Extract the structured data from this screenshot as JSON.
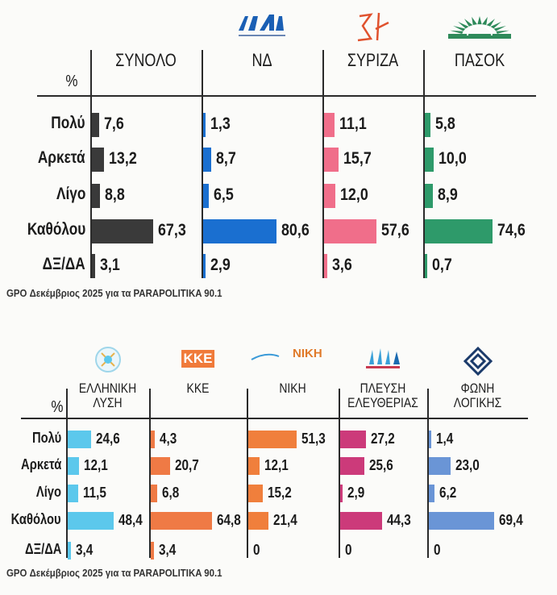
{
  "chart_data": [
    {
      "type": "table",
      "unit_label": "%",
      "rows": [
        "Πολύ",
        "Αρκετά",
        "Λίγο",
        "Καθόλου",
        "ΔΞ/ΔΑ"
      ],
      "series": [
        {
          "name": "ΣΥΝΟΛΟ",
          "color": "#3a3a3a",
          "logo": "",
          "values": [
            7.6,
            13.2,
            8.8,
            67.3,
            3.1
          ],
          "labels": [
            "7,6",
            "13,2",
            "8,8",
            "67,3",
            "3,1"
          ]
        },
        {
          "name": "ΝΔ",
          "color": "#1a6fd0",
          "logo": "nd-logo",
          "values": [
            1.3,
            8.7,
            6.5,
            80.6,
            2.9
          ],
          "labels": [
            "1,3",
            "8,7",
            "6,5",
            "80,6",
            "2,9"
          ]
        },
        {
          "name": "ΣΥΡΙΖΑ",
          "color": "#f06e8a",
          "logo": "syriza-logo",
          "values": [
            11.1,
            15.7,
            12.0,
            57.6,
            3.6
          ],
          "labels": [
            "11,1",
            "15,7",
            "12,0",
            "57,6",
            "3,6"
          ]
        },
        {
          "name": "ΠΑΣΟΚ",
          "color": "#2e9a6a",
          "logo": "pasok-logo",
          "values": [
            5.8,
            10.0,
            8.9,
            74.6,
            0.7
          ],
          "labels": [
            "5,8",
            "10,0",
            "8,9",
            "74,6",
            "0,7"
          ]
        }
      ],
      "source": "GPO Δεκέμβριος 2025 για τα PARAPOLITIKA 90.1"
    },
    {
      "type": "table",
      "unit_label": "%",
      "rows": [
        "Πολύ",
        "Αρκετά",
        "Λίγο",
        "Καθόλου",
        "ΔΞ/ΔΑ"
      ],
      "series": [
        {
          "name": "ΕΛΛΗΝΙΚΗ ΛΥΣΗ",
          "color": "#5cc8ec",
          "logo": "elliniki-lysi-logo",
          "values": [
            24.6,
            12.1,
            11.5,
            48.4,
            3.4
          ],
          "labels": [
            "24,6",
            "12,1",
            "11,5",
            "48,4",
            "3,4"
          ]
        },
        {
          "name": "ΚΚΕ",
          "color": "#ef7a45",
          "logo": "kke-logo",
          "logo_text": "ΚΚΕ",
          "values": [
            4.3,
            20.7,
            6.8,
            64.8,
            3.4
          ],
          "labels": [
            "4,3",
            "20,7",
            "6,8",
            "64,8",
            "3,4"
          ]
        },
        {
          "name": "ΝΙΚΗ",
          "color": "#f07f3c",
          "logo": "niki-logo",
          "logo_text": "ΝΙΚΗ",
          "values": [
            51.3,
            12.1,
            15.2,
            21.4,
            0
          ],
          "labels": [
            "51,3",
            "12,1",
            "15,2",
            "21,4",
            "0"
          ]
        },
        {
          "name": "ΠΛΕΥΣΗ ΕΛΕΥΘΕΡΙΑΣ",
          "color": "#cc3a7a",
          "logo": "plefsi-logo",
          "values": [
            27.2,
            25.6,
            2.9,
            44.3,
            0
          ],
          "labels": [
            "27,2",
            "25,6",
            "2,9",
            "44,3",
            "0"
          ]
        },
        {
          "name": "ΦΩΝΗ ΛΟΓΙΚΗΣ",
          "color": "#6a95d6",
          "logo": "foni-logikis-logo",
          "values": [
            1.4,
            23.0,
            6.2,
            69.4,
            0
          ],
          "labels": [
            "1,4",
            "23,0",
            "6,2",
            "69,4",
            "0"
          ]
        }
      ],
      "source": "GPO Δεκέμβριος 2025 για τα PARAPOLITIKA 90.1"
    }
  ]
}
